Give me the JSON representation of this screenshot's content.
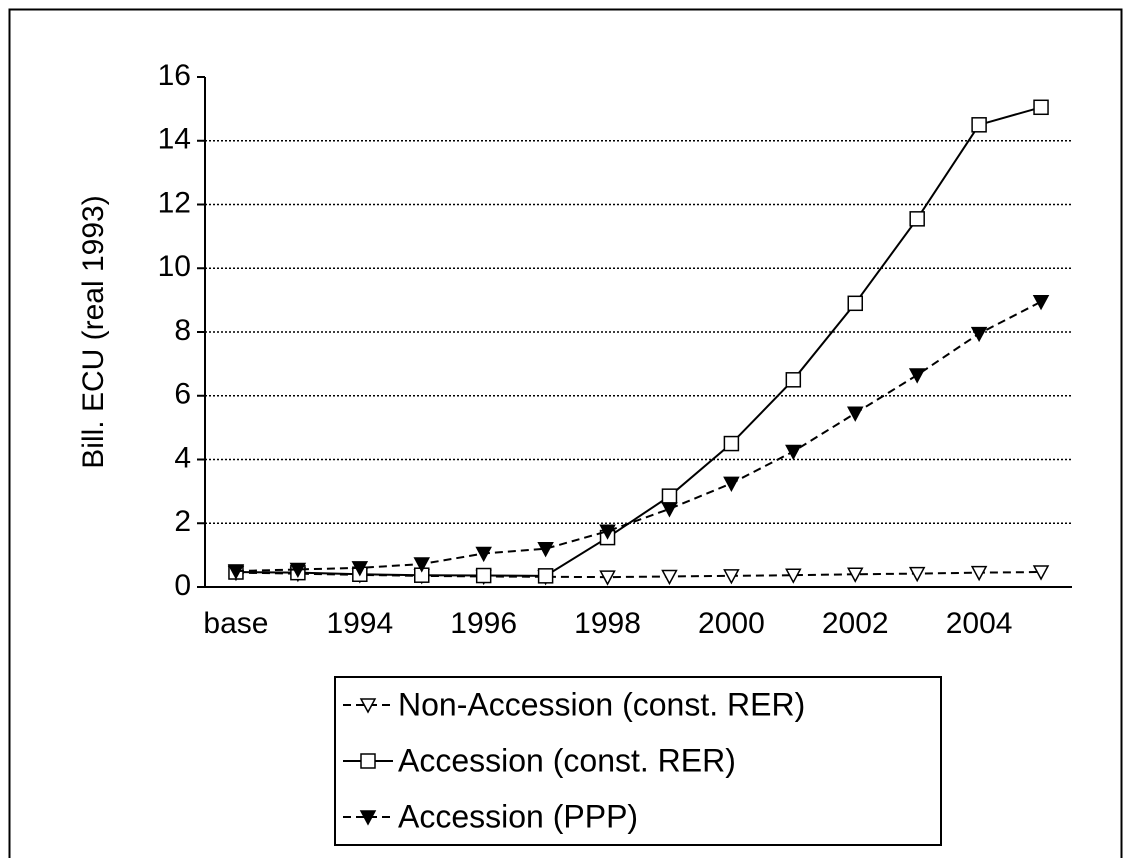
{
  "chart_data": {
    "type": "line",
    "y_label": "Bill. ECU (real 1993)",
    "categories": [
      "base",
      null,
      "1994",
      null,
      "1996",
      null,
      "1998",
      null,
      "2000",
      null,
      "2002",
      null,
      "2004",
      null
    ],
    "ylim": [
      0,
      16
    ],
    "yticks": [
      0,
      2,
      4,
      6,
      8,
      10,
      12,
      14,
      16
    ],
    "grid": true,
    "legend": "bottom",
    "series": [
      {
        "name": "Non-Accession (const. RER)",
        "color": "#000000",
        "dash": true,
        "marker": "triangle-down-open",
        "values": [
          0.45,
          0.42,
          0.38,
          0.35,
          0.33,
          0.32,
          0.31,
          0.33,
          0.35,
          0.37,
          0.4,
          0.42,
          0.45,
          0.47
        ]
      },
      {
        "name": "Accession (const. RER)",
        "color": "#000000",
        "dash": false,
        "marker": "square-open",
        "values": [
          0.47,
          0.45,
          0.4,
          0.37,
          0.36,
          0.35,
          1.55,
          2.85,
          4.5,
          6.5,
          8.9,
          11.55,
          14.5,
          15.05
        ]
      },
      {
        "name": "Accession (PPP)",
        "color": "#000000",
        "dash": true,
        "marker": "triangle-down-filled",
        "values": [
          0.5,
          0.55,
          0.6,
          0.72,
          1.05,
          1.2,
          1.75,
          2.45,
          3.25,
          4.25,
          5.45,
          6.65,
          7.95,
          8.95
        ]
      }
    ]
  }
}
